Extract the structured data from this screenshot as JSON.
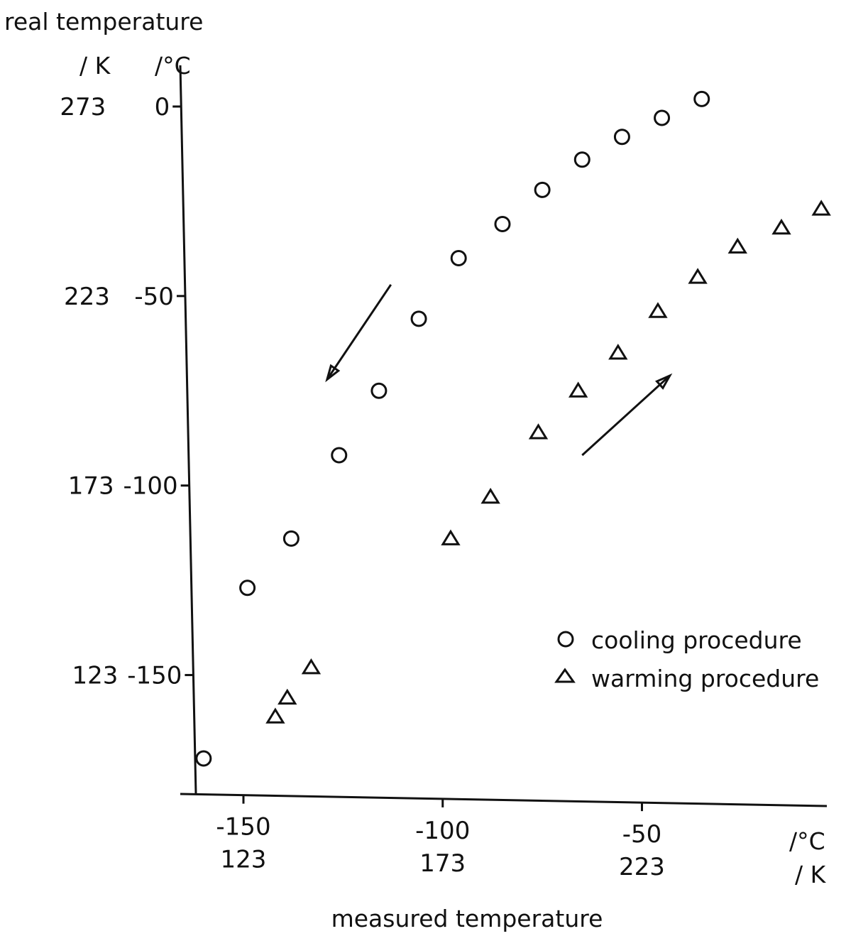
{
  "chart_data": {
    "type": "scatter",
    "ylabel": "real temperature",
    "xlabel": "measured temperature",
    "y_units": [
      "/ K",
      "/°C"
    ],
    "x_units": [
      "/°C",
      "/ K"
    ],
    "xlim": [
      -166,
      -2
    ],
    "ylim": [
      -182,
      4
    ],
    "x_ticks": [
      {
        "c": -150,
        "k": "123"
      },
      {
        "c": -100,
        "k": "173"
      },
      {
        "c": -50,
        "k": "223"
      }
    ],
    "y_ticks": [
      {
        "c": 0,
        "k": "273",
        "label_c": "0"
      },
      {
        "c": -50,
        "k": "223",
        "label_c": "-50"
      },
      {
        "c": -100,
        "k": "173",
        "label_c": "-100"
      },
      {
        "c": -150,
        "k": "123",
        "label_c": "-150"
      }
    ],
    "grid": false,
    "legend_position": "bottom-right",
    "series": [
      {
        "name": "cooling procedure",
        "marker": "circle",
        "x": [
          -160,
          -149,
          -138,
          -126,
          -116,
          -106,
          -96,
          -85,
          -75,
          -65,
          -55,
          -45,
          -35
        ],
        "y": [
          -172,
          -127,
          -114,
          -92,
          -75,
          -56,
          -40,
          -31,
          -22,
          -14,
          -8,
          -3,
          2
        ]
      },
      {
        "name": "warming procedure",
        "marker": "triangle",
        "x": [
          -142,
          -139,
          -133,
          -98,
          -88,
          -76,
          -66,
          -56,
          -46,
          -36,
          -26,
          -15,
          -5
        ],
        "y": [
          -161,
          -156,
          -148,
          -114,
          -103,
          -86,
          -75,
          -65,
          -54,
          -45,
          -37,
          -32,
          -27
        ]
      }
    ],
    "arrows": [
      {
        "direction": "cooling",
        "from": [
          -113,
          -47
        ],
        "to": [
          -129,
          -72
        ]
      },
      {
        "direction": "warming",
        "from": [
          -65,
          -92
        ],
        "to": [
          -43,
          -71
        ]
      }
    ]
  }
}
